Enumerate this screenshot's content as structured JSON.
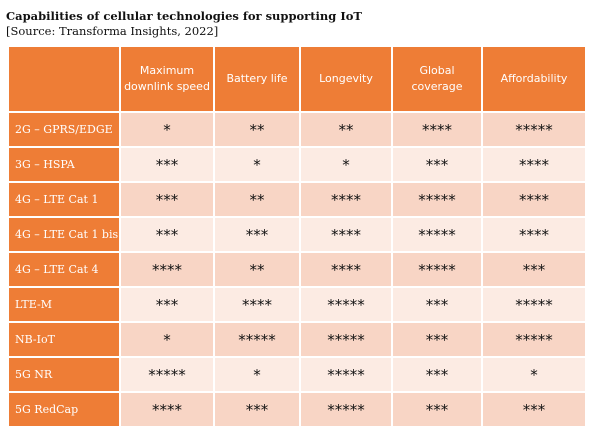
{
  "title": "Capabilities of cellular technologies for supporting IoT",
  "source": "[Source: Transforma Insights, 2022]",
  "table": {
    "headers": [
      "",
      "Maximum downlink speed",
      "Battery life",
      "Longevity",
      "Global coverage",
      "Affordability"
    ],
    "rows": [
      {
        "label": "2G – GPRS/EDGE",
        "cells": [
          "*",
          "**",
          "**",
          "****",
          "*****"
        ]
      },
      {
        "label": "3G – HSPA",
        "cells": [
          "***",
          "*",
          "*",
          "***",
          "****"
        ]
      },
      {
        "label": "4G – LTE Cat 1",
        "cells": [
          "***",
          "**",
          "****",
          "*****",
          "****"
        ]
      },
      {
        "label": "4G – LTE Cat 1 bis",
        "cells": [
          "***",
          "***",
          "****",
          "*****",
          "****"
        ]
      },
      {
        "label": "4G – LTE Cat 4",
        "cells": [
          "****",
          "**",
          "****",
          "*****",
          "***"
        ]
      },
      {
        "label": "LTE-M",
        "cells": [
          "***",
          "****",
          "*****",
          "***",
          "*****"
        ]
      },
      {
        "label": "NB-IoT",
        "cells": [
          "*",
          "*****",
          "*****",
          "***",
          "*****"
        ]
      },
      {
        "label": "5G NR",
        "cells": [
          "*****",
          "*",
          "*****",
          "***",
          "*"
        ]
      },
      {
        "label": "5G RedCap",
        "cells": [
          "****",
          "***",
          "*****",
          "***",
          "***"
        ]
      }
    ]
  },
  "colors": {
    "header_orange": "#ee7d36",
    "row_dark": "#f8d5c5",
    "row_light": "#fcebe3"
  }
}
